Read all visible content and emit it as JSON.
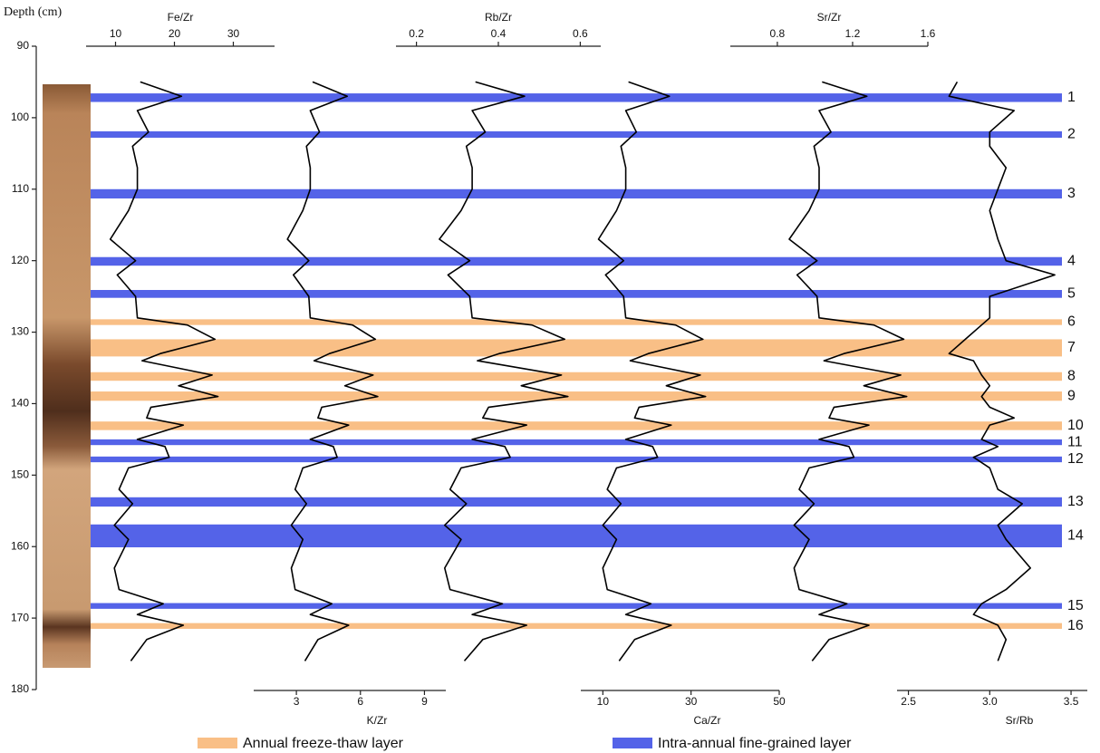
{
  "chart_data": {
    "type": "depth-profile",
    "y_label": "Depth (cm)",
    "ylim": [
      90,
      180
    ],
    "yticks": [
      90,
      100,
      110,
      120,
      130,
      140,
      150,
      160,
      170,
      180
    ],
    "depth": [
      95,
      97,
      99,
      102,
      104,
      107,
      110,
      113,
      117,
      120,
      122,
      125,
      128,
      129,
      131,
      133,
      134,
      136,
      137.5,
      139,
      140.5,
      142,
      143,
      145,
      146,
      147.5,
      149,
      152,
      154,
      157,
      159,
      163,
      166,
      168,
      169.5,
      171,
      173,
      176
    ],
    "panels": [
      {
        "name": "Fe/Zr",
        "axis": "top",
        "color": "#000000",
        "xlim": [
          5,
          37
        ],
        "xticks": [
          10,
          20,
          30
        ],
        "values": [
          14.2,
          21.2,
          13.7,
          15.6,
          12.9,
          13.7,
          13.7,
          12.2,
          9.1,
          13.4,
          10.3,
          13.4,
          13.7,
          22.2,
          26.9,
          17.6,
          14.5,
          26.4,
          20.7,
          27.4,
          16.0,
          15.3,
          21.5,
          13.7,
          18.4,
          19.1,
          12.2,
          10.6,
          12.9,
          9.8,
          12.2,
          9.8,
          10.6,
          18.1,
          13.7,
          21.5,
          15.3,
          12.6
        ]
      },
      {
        "name": "K/Zr",
        "axis": "bottom",
        "color": "#000000",
        "xlim": [
          1,
          10
        ],
        "xticks": [
          3,
          6,
          9
        ],
        "values": [
          3.76,
          5.38,
          3.65,
          4.08,
          3.47,
          3.65,
          3.65,
          3.3,
          2.58,
          3.58,
          2.86,
          3.58,
          3.65,
          5.63,
          6.7,
          4.55,
          3.83,
          6.59,
          5.27,
          6.81,
          4.19,
          4.01,
          5.45,
          3.65,
          4.73,
          4.91,
          3.3,
          2.94,
          3.47,
          2.76,
          3.3,
          2.76,
          2.94,
          4.66,
          3.65,
          5.45,
          4.01,
          3.4
        ]
      },
      {
        "name": "Rb/Zr",
        "axis": "top",
        "color": "#000000",
        "xlim": [
          0.15,
          0.65
        ],
        "xticks": [
          0.2,
          0.4,
          0.6
        ],
        "values": [
          0.344,
          0.464,
          0.336,
          0.368,
          0.322,
          0.336,
          0.336,
          0.309,
          0.256,
          0.33,
          0.277,
          0.33,
          0.336,
          0.482,
          0.562,
          0.402,
          0.349,
          0.554,
          0.456,
          0.57,
          0.376,
          0.362,
          0.469,
          0.336,
          0.416,
          0.429,
          0.309,
          0.282,
          0.322,
          0.269,
          0.309,
          0.269,
          0.282,
          0.41,
          0.336,
          0.469,
          0.362,
          0.317
        ]
      },
      {
        "name": "Ca/Zr",
        "axis": "bottom",
        "color": "#000000",
        "xlim": [
          5,
          50
        ],
        "xticks": [
          10,
          30,
          50
        ],
        "values": [
          15.8,
          25.1,
          15.2,
          17.6,
          14.1,
          15.2,
          15.2,
          13.1,
          9.0,
          14.7,
          10.6,
          14.7,
          15.2,
          26.5,
          32.7,
          20.3,
          16.2,
          32.1,
          24.4,
          33.3,
          18.2,
          17.2,
          25.5,
          15.2,
          21.3,
          22.4,
          13.1,
          11.0,
          14.1,
          10.0,
          13.1,
          10.0,
          11.0,
          20.9,
          15.2,
          25.5,
          17.2,
          13.7
        ]
      },
      {
        "name": "Sr/Zr",
        "axis": "top",
        "color": "#000000",
        "xlim": [
          0.55,
          1.6
        ],
        "xticks": [
          0.8,
          1.2,
          1.6
        ],
        "values": [
          1.038,
          1.276,
          1.022,
          1.085,
          0.995,
          1.022,
          1.022,
          0.969,
          0.863,
          1.011,
          0.905,
          1.011,
          1.022,
          1.313,
          1.472,
          1.154,
          1.048,
          1.456,
          1.26,
          1.488,
          1.101,
          1.075,
          1.287,
          1.022,
          1.181,
          1.207,
          0.969,
          0.916,
          0.995,
          0.889,
          0.969,
          0.889,
          0.916,
          1.17,
          1.022,
          1.287,
          1.075,
          0.985
        ]
      },
      {
        "name": "Sr/Rb",
        "axis": "bottom",
        "color": "#000000",
        "xlim": [
          2.43,
          3.6
        ],
        "xticks": [
          2.5,
          {
            "value": 3,
            "label": "3.0"
          },
          3.5
        ],
        "values": [
          2.8,
          2.75,
          3.15,
          3.0,
          3.0,
          3.1,
          3.05,
          3.0,
          3.05,
          3.1,
          3.4,
          3.0,
          3.0,
          2.95,
          2.85,
          2.75,
          2.9,
          2.95,
          3.0,
          2.95,
          3.0,
          3.15,
          3.0,
          2.95,
          3.05,
          2.9,
          3.0,
          3.05,
          3.2,
          3.05,
          3.1,
          3.25,
          3.1,
          2.95,
          2.9,
          3.05,
          3.1,
          3.05
        ]
      }
    ],
    "layer_groups": [
      {
        "name": "Annual freeze-thaw layer",
        "color": "#f9bf86",
        "layers": [
          {
            "label": "6",
            "top": 128.2,
            "bottom": 129.0
          },
          {
            "label": "7",
            "top": 131.0,
            "bottom": 133.4
          },
          {
            "label": "8",
            "top": 135.6,
            "bottom": 136.8
          },
          {
            "label": "9",
            "top": 138.3,
            "bottom": 139.6
          },
          {
            "label": "10",
            "top": 142.5,
            "bottom": 143.7
          },
          {
            "label": "16",
            "top": 170.7,
            "bottom": 171.5
          }
        ]
      },
      {
        "name": "Intra-annual fine-grained layer",
        "color": "#5463e8",
        "layers": [
          {
            "label": "1",
            "top": 96.6,
            "bottom": 97.8
          },
          {
            "label": "2",
            "top": 101.9,
            "bottom": 102.8
          },
          {
            "label": "3",
            "top": 110.0,
            "bottom": 111.3
          },
          {
            "label": "4",
            "top": 119.5,
            "bottom": 120.7
          },
          {
            "label": "5",
            "top": 124.1,
            "bottom": 125.2
          },
          {
            "label": "11",
            "top": 145.0,
            "bottom": 145.8
          },
          {
            "label": "12",
            "top": 147.4,
            "bottom": 148.2
          },
          {
            "label": "13",
            "top": 153.1,
            "bottom": 154.4
          },
          {
            "label": "14",
            "top": 156.9,
            "bottom": 160.1
          },
          {
            "label": "15",
            "top": 167.9,
            "bottom": 168.7
          }
        ]
      }
    ]
  }
}
